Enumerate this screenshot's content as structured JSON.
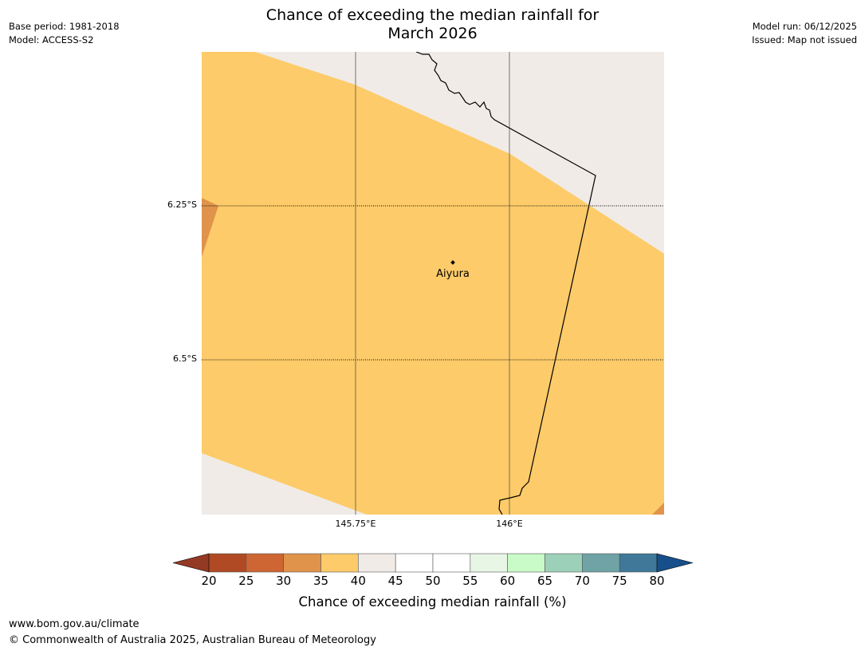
{
  "title_line1": "Chance of exceeding the median rainfall for",
  "title_line2": "March 2026",
  "meta_left": {
    "base_period": "Base period: 1981-2018",
    "model": "Model: ACCESS-S2"
  },
  "meta_right": {
    "model_run": "Model run: 06/12/2025",
    "issued": "Issued: Map not issued"
  },
  "map": {
    "lat_labels": [
      "6.25°S",
      "6.5°S"
    ],
    "lon_labels": [
      "145.75°E",
      "146°E"
    ],
    "place": {
      "name": "Aiyura"
    },
    "fill_colors": {
      "land_low": "#fdcb69",
      "land_very_low": "#e0934b",
      "neutral": "#f0ebe6",
      "border": "#000000"
    }
  },
  "colorbar": {
    "ticks": [
      "20",
      "25",
      "30",
      "35",
      "40",
      "45",
      "50",
      "55",
      "60",
      "65",
      "70",
      "75",
      "80"
    ],
    "colors": [
      "#b04a24",
      "#cd6632",
      "#e0934b",
      "#fdcb69",
      "#f0ebe6",
      "#ffffff",
      "#ffffff",
      "#e8f6e6",
      "#c9fbc8",
      "#9dd0b8",
      "#6fa3a6",
      "#3f7899"
    ],
    "under_color": "#943a24",
    "over_color": "#174f8a",
    "label": "Chance of exceeding median rainfall (%)"
  },
  "footer": {
    "url": "www.bom.gov.au/climate",
    "copyright": "© Commonwealth of Australia 2025, Australian Bureau of Meteorology"
  }
}
